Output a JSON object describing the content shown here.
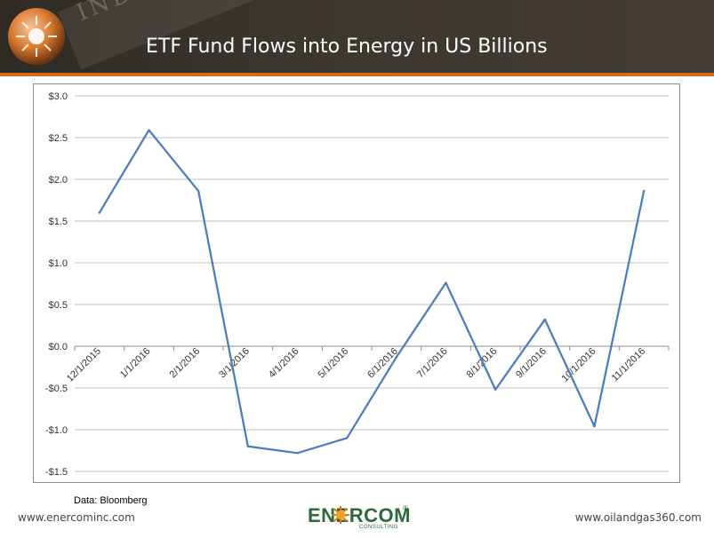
{
  "header": {
    "title": "ETF Fund Flows into Energy in US Billions",
    "banner_text": "INDUSTRY",
    "accent_color": "#d86a17",
    "background_color": "#3b362e"
  },
  "chart_data": {
    "type": "line",
    "title": "",
    "xlabel": "",
    "ylabel": "",
    "categories": [
      "12/1/2015",
      "1/1/2016",
      "2/1/2016",
      "3/1/2016",
      "4/1/2016",
      "5/1/2016",
      "6/1/2016",
      "7/1/2016",
      "8/1/2016",
      "9/1/2016",
      "10/1/2016",
      "11/1/2016"
    ],
    "values": [
      1.6,
      2.59,
      1.86,
      -1.2,
      -1.28,
      -1.1,
      -0.13,
      0.76,
      -0.52,
      0.32,
      -0.96,
      1.86
    ],
    "ylim": [
      -1.5,
      3.0
    ],
    "y_ticks": [
      3.0,
      2.5,
      2.0,
      1.5,
      1.0,
      0.5,
      0.0,
      -0.5,
      -1.0,
      -1.5
    ],
    "y_tick_labels": [
      "$3.0",
      "$2.5",
      "$2.0",
      "$1.5",
      "$1.0",
      "$0.5",
      "$0.0",
      "-$0.5",
      "-$1.0",
      "-$1.5"
    ],
    "grid": true,
    "legend": "none",
    "line_color": "#4a7ebb"
  },
  "source_note": "Data: Bloomberg",
  "footer": {
    "left_url": "www.enercominc.com",
    "right_url": "www.oilandgas360.com",
    "logo_text": "ENERCOM",
    "logo_subtext": "CONSULTING",
    "logo_mark": "®",
    "logo_color": "#2d6a3b"
  }
}
